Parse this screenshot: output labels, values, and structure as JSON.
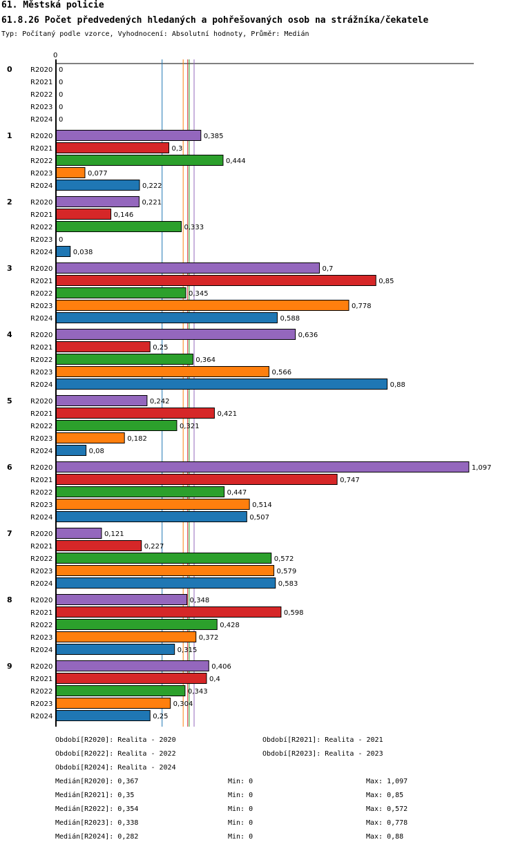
{
  "header": {
    "title": "61. Městská policie",
    "subtitle": "61.8.26 Počet předvedených hledaných a pohřešovaných osob na strážníka/čekatele",
    "meta": "Typ: Počítaný podle vzorce, Vyhodnocení: Absolutní hodnoty, Průměr: Medián"
  },
  "chart_data": {
    "type": "bar",
    "orientation": "horizontal",
    "axis_zero_label": "0",
    "xlim": [
      0,
      1.1
    ],
    "groups": [
      "0",
      "1",
      "2",
      "3",
      "4",
      "5",
      "6",
      "7",
      "8",
      "9"
    ],
    "series": [
      {
        "name": "R2020",
        "color": "#9467bd",
        "values": [
          0,
          0.385,
          0.221,
          0.7,
          0.636,
          0.242,
          1.097,
          0.121,
          0.348,
          0.406
        ],
        "labels": [
          "0",
          "0,385",
          "0,221",
          "0,7",
          "0,636",
          "0,242",
          "1,097",
          "0,121",
          "0,348",
          "0,406"
        ]
      },
      {
        "name": "R2021",
        "color": "#d62728",
        "values": [
          0,
          0.3,
          0.146,
          0.85,
          0.25,
          0.421,
          0.747,
          0.227,
          0.598,
          0.4
        ],
        "labels": [
          "0",
          "0,3",
          "0,146",
          "0,85",
          "0,25",
          "0,421",
          "0,747",
          "0,227",
          "0,598",
          "0,4"
        ]
      },
      {
        "name": "R2022",
        "color": "#2ca02c",
        "values": [
          0,
          0.444,
          0.333,
          0.345,
          0.364,
          0.321,
          0.447,
          0.572,
          0.428,
          0.343
        ],
        "labels": [
          "0",
          "0,444",
          "0,333",
          "0,345",
          "0,364",
          "0,321",
          "0,447",
          "0,572",
          "0,428",
          "0,343"
        ]
      },
      {
        "name": "R2023",
        "color": "#ff7f0e",
        "values": [
          0,
          0.077,
          0,
          0.778,
          0.566,
          0.182,
          0.514,
          0.579,
          0.372,
          0.304
        ],
        "labels": [
          "0",
          "0,077",
          "0",
          "0,778",
          "0,566",
          "0,182",
          "0,514",
          "0,579",
          "0,372",
          "0,304"
        ]
      },
      {
        "name": "R2024",
        "color": "#1f77b4",
        "values": [
          0,
          0.222,
          0.038,
          0.588,
          0.88,
          0.08,
          0.507,
          0.583,
          0.315,
          0.25
        ],
        "labels": [
          "0",
          "0,222",
          "0,038",
          "0,588",
          "0,88",
          "0,08",
          "0,507",
          "0,583",
          "0,315",
          "0,25"
        ]
      }
    ],
    "median_lines": [
      {
        "series": "R2020",
        "value": 0.367,
        "color": "#9467bd"
      },
      {
        "series": "R2021",
        "value": 0.35,
        "color": "#d62728"
      },
      {
        "series": "R2022",
        "value": 0.354,
        "color": "#2ca02c"
      },
      {
        "series": "R2023",
        "value": 0.338,
        "color": "#ff7f0e"
      },
      {
        "series": "R2024",
        "value": 0.282,
        "color": "#1f77b4"
      }
    ]
  },
  "legend": [
    "Období[R2020]: Realita - 2020",
    "Období[R2021]: Realita - 2021",
    "Období[R2022]: Realita - 2022",
    "Období[R2023]: Realita - 2023",
    "Období[R2024]: Realita - 2024"
  ],
  "stats": [
    {
      "median": "Medián[R2020]: 0,367",
      "min": "Min: 0",
      "max": "Max: 1,097"
    },
    {
      "median": "Medián[R2021]: 0,35",
      "min": "Min: 0",
      "max": "Max: 0,85"
    },
    {
      "median": "Medián[R2022]: 0,354",
      "min": "Min: 0",
      "max": "Max: 0,572"
    },
    {
      "median": "Medián[R2023]: 0,338",
      "min": "Min: 0",
      "max": "Max: 0,778"
    },
    {
      "median": "Medián[R2024]: 0,282",
      "min": "Min: 0",
      "max": "Max: 0,88"
    }
  ]
}
